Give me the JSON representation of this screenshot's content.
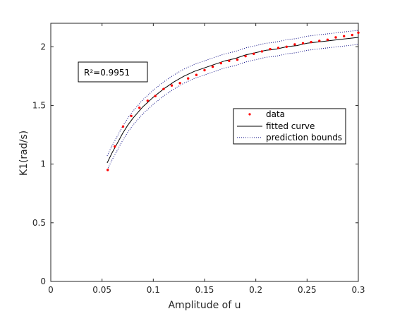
{
  "chart_data": {
    "type": "scatter",
    "xlabel": "Amplitude of u",
    "ylabel": "K1(rad/s)",
    "xlim": [
      0,
      0.3
    ],
    "ylim": [
      0,
      2.2
    ],
    "x_ticks": [
      0,
      0.05,
      0.1,
      0.15,
      0.2,
      0.25,
      0.3
    ],
    "x_tick_labels": [
      "0",
      "0.05",
      "0.1",
      "0.15",
      "0.2",
      "0.25",
      "0.3"
    ],
    "y_ticks": [
      0,
      0.5,
      1,
      1.5,
      2
    ],
    "y_tick_labels": [
      "0",
      "0.5",
      "1",
      "1.5",
      "2"
    ],
    "grid": false,
    "legend_position": "right",
    "annotation": "R²=0.9951",
    "series": [
      {
        "name": "data",
        "style": "points",
        "color": "#ff0000",
        "x": [
          0.0555,
          0.0625,
          0.0705,
          0.0785,
          0.0865,
          0.0945,
          0.102,
          0.11,
          0.118,
          0.126,
          0.134,
          0.142,
          0.15,
          0.158,
          0.166,
          0.174,
          0.182,
          0.19,
          0.198,
          0.206,
          0.214,
          0.222,
          0.23,
          0.238,
          0.246,
          0.254,
          0.262,
          0.27,
          0.278,
          0.286,
          0.294,
          0.3
        ],
        "y": [
          0.95,
          1.15,
          1.32,
          1.41,
          1.48,
          1.54,
          1.58,
          1.64,
          1.67,
          1.69,
          1.73,
          1.76,
          1.8,
          1.83,
          1.86,
          1.88,
          1.89,
          1.92,
          1.94,
          1.96,
          1.98,
          1.99,
          2.0,
          2.02,
          2.03,
          2.04,
          2.05,
          2.06,
          2.08,
          2.09,
          2.1,
          2.12
        ]
      },
      {
        "name": "fitted curve",
        "style": "solid",
        "color": "#000000",
        "x": [
          0.055,
          0.06,
          0.065,
          0.07,
          0.075,
          0.08,
          0.085,
          0.09,
          0.095,
          0.1,
          0.11,
          0.12,
          0.13,
          0.14,
          0.15,
          0.16,
          0.17,
          0.18,
          0.19,
          0.2,
          0.21,
          0.22,
          0.23,
          0.24,
          0.25,
          0.26,
          0.27,
          0.28,
          0.29,
          0.3
        ],
        "y": [
          1.01,
          1.1,
          1.18,
          1.26,
          1.33,
          1.39,
          1.44,
          1.49,
          1.53,
          1.57,
          1.64,
          1.7,
          1.75,
          1.79,
          1.82,
          1.85,
          1.88,
          1.9,
          1.93,
          1.95,
          1.97,
          1.98,
          2.0,
          2.01,
          2.03,
          2.04,
          2.05,
          2.06,
          2.07,
          2.08
        ]
      },
      {
        "name": "prediction bounds",
        "style": "dotted",
        "color": "#00007f",
        "x": [
          0.055,
          0.06,
          0.065,
          0.07,
          0.075,
          0.08,
          0.085,
          0.09,
          0.095,
          0.1,
          0.11,
          0.12,
          0.13,
          0.14,
          0.15,
          0.16,
          0.17,
          0.18,
          0.19,
          0.2,
          0.21,
          0.22,
          0.23,
          0.24,
          0.25,
          0.26,
          0.27,
          0.28,
          0.29,
          0.3
        ],
        "y": [
          1.07,
          1.16,
          1.24,
          1.32,
          1.39,
          1.45,
          1.5,
          1.55,
          1.59,
          1.63,
          1.7,
          1.76,
          1.81,
          1.85,
          1.88,
          1.91,
          1.94,
          1.96,
          1.99,
          2.01,
          2.03,
          2.04,
          2.06,
          2.07,
          2.09,
          2.1,
          2.11,
          2.12,
          2.13,
          2.14
        ]
      },
      {
        "name": "prediction bounds (lower)",
        "style": "dotted",
        "color": "#00007f",
        "x": [
          0.055,
          0.06,
          0.065,
          0.07,
          0.075,
          0.08,
          0.085,
          0.09,
          0.095,
          0.1,
          0.11,
          0.12,
          0.13,
          0.14,
          0.15,
          0.16,
          0.17,
          0.18,
          0.19,
          0.2,
          0.21,
          0.22,
          0.23,
          0.24,
          0.25,
          0.26,
          0.27,
          0.28,
          0.29,
          0.3
        ],
        "y": [
          0.95,
          1.04,
          1.12,
          1.2,
          1.27,
          1.33,
          1.38,
          1.43,
          1.47,
          1.51,
          1.58,
          1.64,
          1.69,
          1.73,
          1.76,
          1.79,
          1.82,
          1.84,
          1.87,
          1.89,
          1.91,
          1.92,
          1.94,
          1.95,
          1.97,
          1.98,
          1.99,
          2.0,
          2.01,
          2.02
        ]
      }
    ]
  }
}
